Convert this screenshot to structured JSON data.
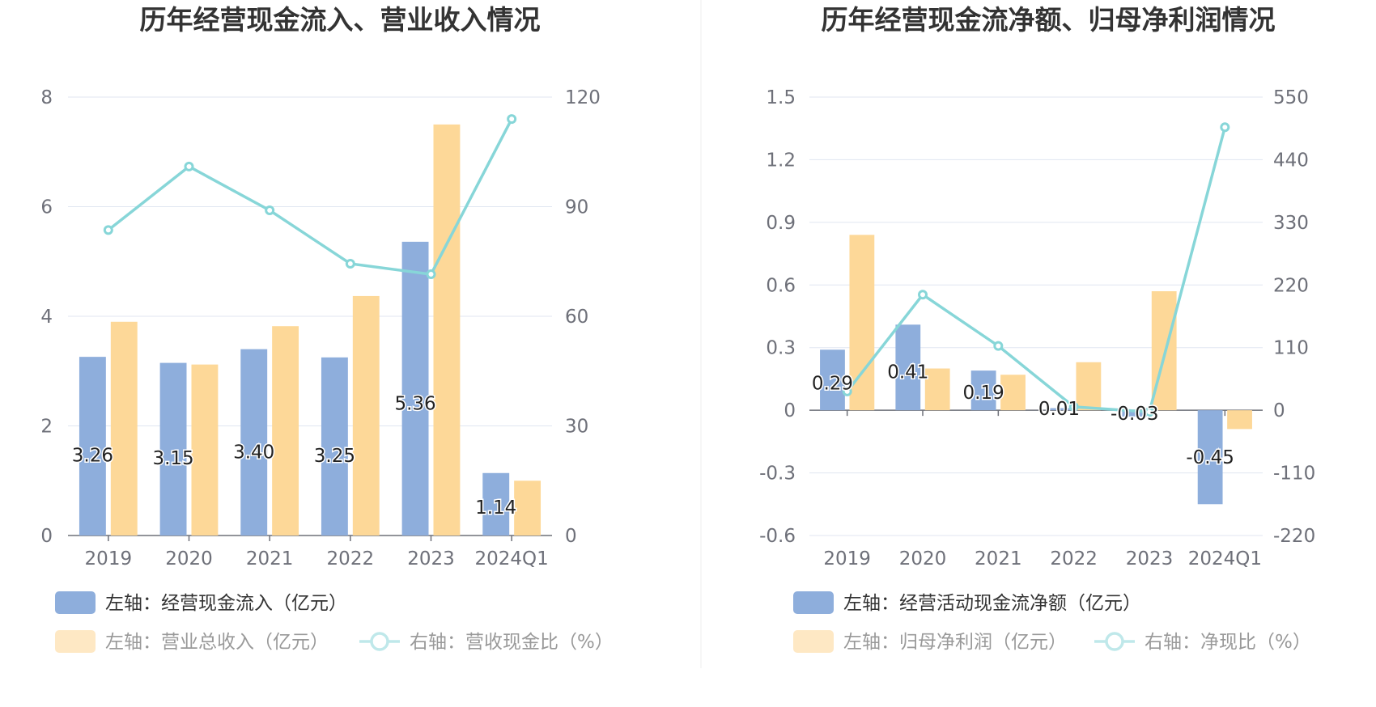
{
  "colors": {
    "bar_primary": "#8eaedc",
    "bar_secondary": "#fdd898",
    "line": "#87d6d8",
    "grid": "#e0e6f1",
    "axis": "#6e7079",
    "text": "#333333",
    "divider": "#eeeeee"
  },
  "chart_data": [
    {
      "type": "bar",
      "title": "历年经营现金流入、营业收入情况",
      "categories": [
        "2019",
        "2020",
        "2021",
        "2022",
        "2023",
        "2024Q1"
      ],
      "left_axis": {
        "ticks": [
          0,
          2,
          4,
          6,
          8
        ],
        "range": [
          0,
          8
        ]
      },
      "right_axis": {
        "ticks": [
          0,
          30,
          60,
          90,
          120
        ],
        "range": [
          0,
          120
        ]
      },
      "series": [
        {
          "name": "左轴：经营现金流入（亿元）",
          "kind": "bar",
          "axis": "left",
          "values": [
            3.26,
            3.15,
            3.4,
            3.25,
            5.36,
            1.14
          ],
          "labels": [
            "3.26",
            "3.15",
            "3.40",
            "3.25",
            "5.36",
            "1.14"
          ]
        },
        {
          "name": "左轴：营业总收入（亿元）",
          "kind": "bar",
          "axis": "left",
          "values": [
            3.9,
            3.12,
            3.82,
            4.37,
            7.5,
            1.0
          ]
        },
        {
          "name": "右轴：营收现金比（%）",
          "kind": "line",
          "axis": "right",
          "values": [
            83.6,
            101.0,
            89.0,
            74.4,
            71.5,
            114.0
          ]
        }
      ]
    },
    {
      "type": "bar",
      "title": "历年经营现金流净额、归母净利润情况",
      "categories": [
        "2019",
        "2020",
        "2021",
        "2022",
        "2023",
        "2024Q1"
      ],
      "left_axis": {
        "ticks": [
          "-0.6",
          "-0.3",
          "0",
          "0.3",
          "0.6",
          "0.9",
          "1.2",
          "1.5"
        ],
        "range": [
          -0.6,
          1.5
        ]
      },
      "right_axis": {
        "ticks": [
          "-220",
          "-110",
          "0",
          "110",
          "220",
          "330",
          "440",
          "550"
        ],
        "range": [
          -220,
          550
        ]
      },
      "series": [
        {
          "name": "左轴：经营活动现金流净额（亿元）",
          "kind": "bar",
          "axis": "left",
          "values": [
            0.29,
            0.41,
            0.19,
            0.01,
            -0.03,
            -0.45
          ],
          "labels": [
            "0.29",
            "0.41",
            "0.19",
            "0.01",
            "-0.03",
            "-0.45"
          ]
        },
        {
          "name": "左轴：归母净利润（亿元）",
          "kind": "bar",
          "axis": "left",
          "values": [
            0.84,
            0.2,
            0.17,
            0.23,
            0.57,
            -0.09
          ]
        },
        {
          "name": "右轴：净现比（%）",
          "kind": "line",
          "axis": "right",
          "values": [
            33,
            203,
            113,
            6,
            -3,
            497
          ]
        }
      ]
    }
  ]
}
